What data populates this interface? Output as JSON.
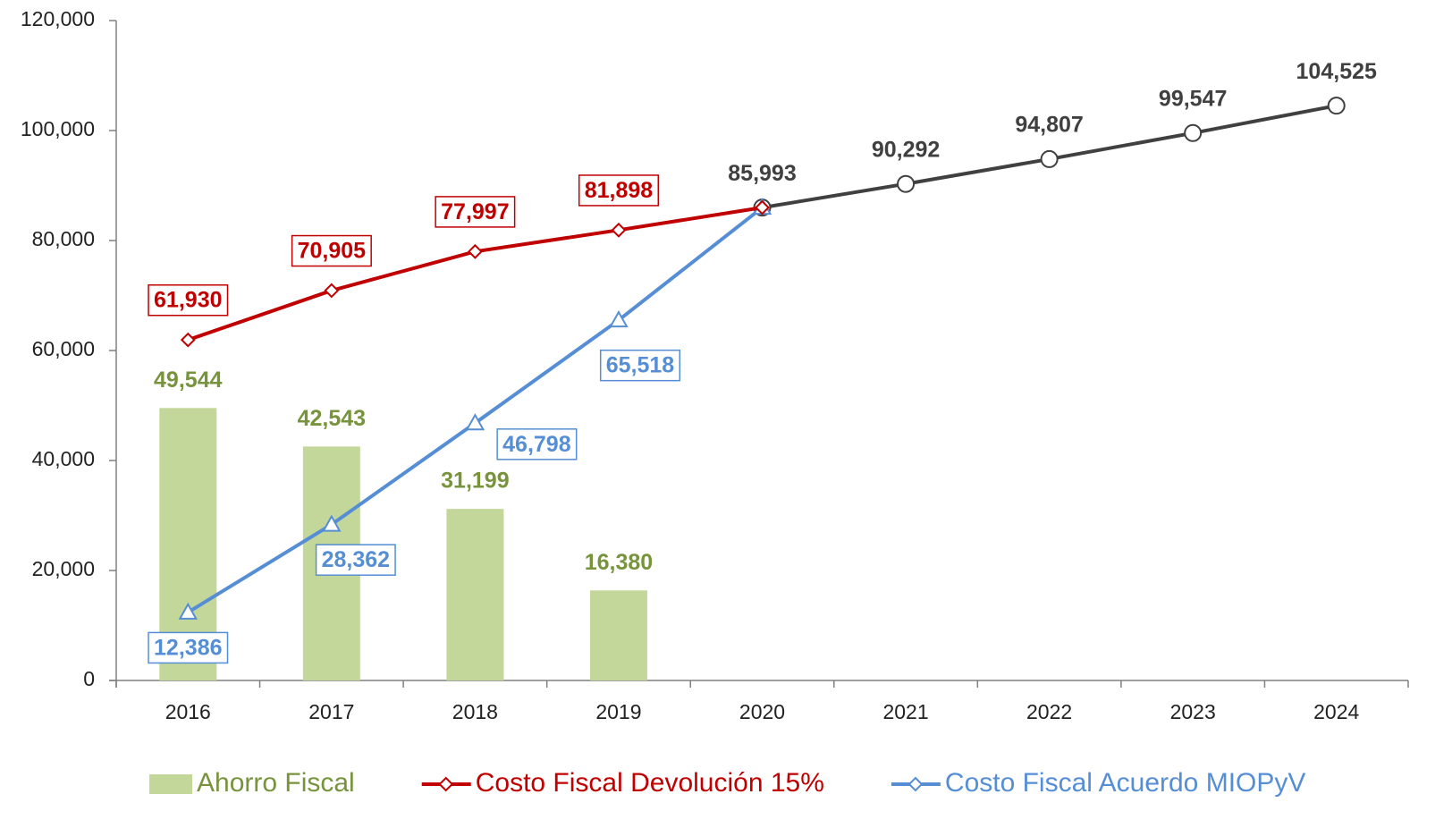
{
  "chart_data": {
    "type": "bar-line",
    "categories": [
      "2016",
      "2017",
      "2018",
      "2019",
      "2020",
      "2021",
      "2022",
      "2023",
      "2024"
    ],
    "series": [
      {
        "name": "Ahorro Fiscal",
        "type": "bar",
        "color": "#c4d79b",
        "label_color": "#77933c",
        "values": [
          49544,
          42543,
          31199,
          16380,
          null,
          null,
          null,
          null,
          null
        ],
        "value_labels": [
          "49,544",
          "42,543",
          "31,199",
          "16,380",
          null,
          null,
          null,
          null,
          null
        ]
      },
      {
        "name": "Costo Fiscal Devolución 15%",
        "type": "line",
        "marker": "diamond",
        "color": "#c00000",
        "label_color": "#c00000",
        "values": [
          61930,
          70905,
          77997,
          81898,
          85993,
          null,
          null,
          null,
          null
        ],
        "value_labels": [
          "61,930",
          "70,905",
          "77,997",
          "81,898",
          null,
          null,
          null,
          null,
          null
        ]
      },
      {
        "name": "Costo Fiscal Acuerdo MIOPyV",
        "type": "line",
        "marker": "triangle",
        "color": "#558ed5",
        "label_color": "#558ed5",
        "values": [
          12386,
          28362,
          46798,
          65518,
          85993,
          null,
          null,
          null,
          null
        ],
        "value_labels": [
          "12,386",
          "28,362",
          "46,798",
          "65,518",
          null,
          null,
          null,
          null,
          null
        ]
      },
      {
        "type": "line",
        "marker": "circle",
        "color": "#404040",
        "label_color": "#404040",
        "values": [
          null,
          null,
          null,
          null,
          85993,
          90292,
          94807,
          99547,
          104525
        ],
        "value_labels": [
          null,
          null,
          null,
          null,
          "85,993",
          "90,292",
          "94,807",
          "99,547",
          "104,525"
        ]
      }
    ],
    "ylim": [
      0,
      120000
    ],
    "yticks": [
      0,
      {
        "value": 20000,
        "label": "20,000"
      },
      {
        "value": 40000,
        "label": "40,000"
      },
      {
        "value": 60000,
        "label": "60,000"
      },
      {
        "value": 80000,
        "label": "80,000"
      },
      {
        "value": 100000,
        "label": "100,000"
      },
      {
        "value": 120000,
        "label": "120,000"
      }
    ],
    "grid": false,
    "legend": "bottom"
  }
}
